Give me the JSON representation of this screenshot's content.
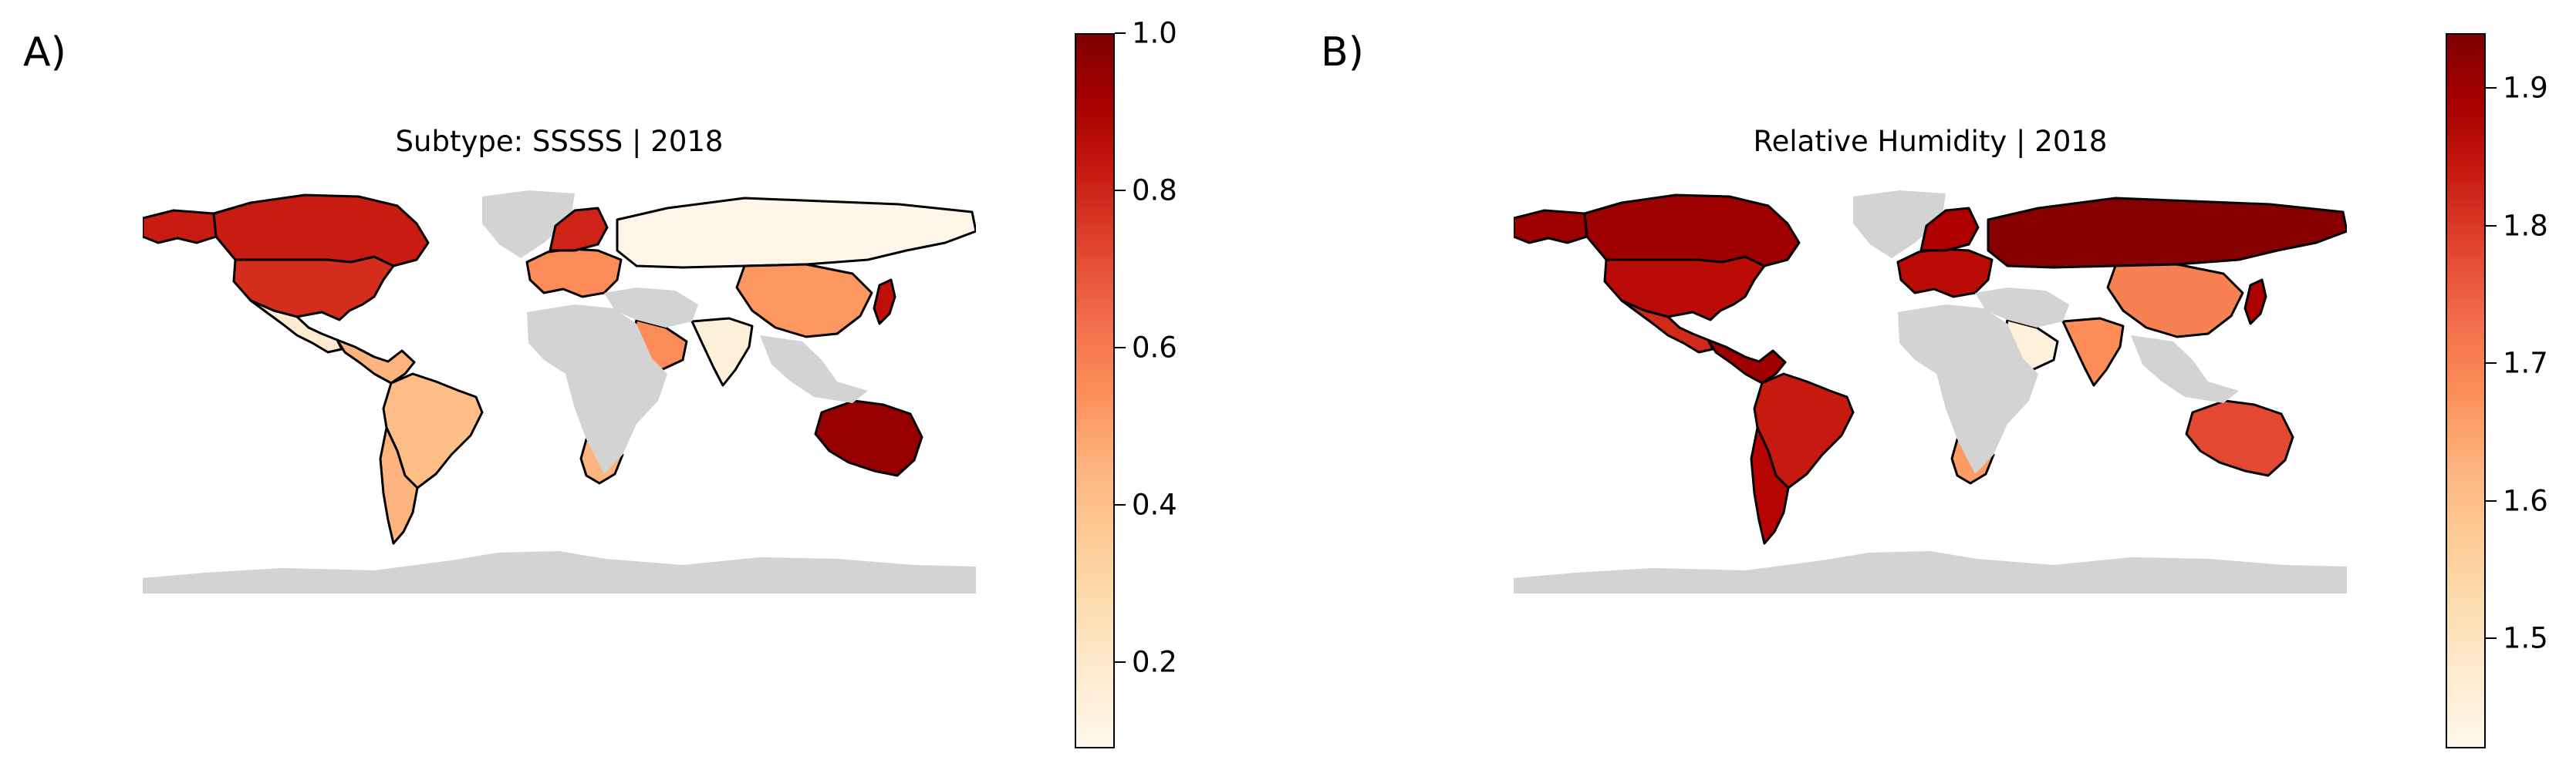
{
  "panels": [
    {
      "label": "A)",
      "title": "Subtype: SSSSS | 2018",
      "colormap": "OrRd",
      "colorbar": {
        "min": 0.09,
        "max": 1.0,
        "ticks": [
          0.2,
          0.4,
          0.6,
          0.8,
          1.0
        ],
        "tick_labels": [
          "0.2",
          "0.4",
          "0.6",
          "0.8",
          "1.0"
        ]
      },
      "regions": [
        {
          "name": "USA",
          "value": 0.78
        },
        {
          "name": "Canada",
          "value": 0.82
        },
        {
          "name": "Alaska",
          "value": 0.82
        },
        {
          "name": "Greenland",
          "value": null
        },
        {
          "name": "Mexico",
          "value": 0.18
        },
        {
          "name": "Central America",
          "value": 0.45
        },
        {
          "name": "South America",
          "value": 0.42
        },
        {
          "name": "Argentina/Chile",
          "value": 0.45
        },
        {
          "name": "Western Europe",
          "value": 0.55
        },
        {
          "name": "Scandinavia",
          "value": 0.8
        },
        {
          "name": "Russia",
          "value": 0.1
        },
        {
          "name": "China",
          "value": 0.52
        },
        {
          "name": "India",
          "value": 0.15
        },
        {
          "name": "Japan",
          "value": 0.85
        },
        {
          "name": "Arabian Peninsula",
          "value": 0.55
        },
        {
          "name": "South Africa",
          "value": 0.45
        },
        {
          "name": "Australia",
          "value": 0.95
        },
        {
          "name": "Africa",
          "value": null
        },
        {
          "name": "Middle East",
          "value": null
        },
        {
          "name": "Southeast Asia",
          "value": null
        },
        {
          "name": "Antarctica",
          "value": null
        }
      ]
    },
    {
      "label": "B)",
      "title": "Relative Humidity | 2018",
      "colormap": "OrRd",
      "colorbar": {
        "min": 1.42,
        "max": 1.94,
        "ticks": [
          1.5,
          1.6,
          1.7,
          1.8,
          1.9
        ],
        "tick_labels": [
          "1.5",
          "1.6",
          "1.7",
          "1.8",
          "1.9"
        ]
      },
      "regions": [
        {
          "name": "USA",
          "value": 1.86
        },
        {
          "name": "Canada",
          "value": 1.9
        },
        {
          "name": "Alaska",
          "value": 1.9
        },
        {
          "name": "Greenland",
          "value": null
        },
        {
          "name": "Mexico",
          "value": 1.82
        },
        {
          "name": "Central America",
          "value": 1.9
        },
        {
          "name": "South America",
          "value": 1.84
        },
        {
          "name": "Argentina/Chile",
          "value": 1.87
        },
        {
          "name": "Western Europe",
          "value": 1.86
        },
        {
          "name": "Scandinavia",
          "value": 1.88
        },
        {
          "name": "Russia",
          "value": 1.93
        },
        {
          "name": "China",
          "value": 1.7
        },
        {
          "name": "India",
          "value": 1.68
        },
        {
          "name": "Japan",
          "value": 1.88
        },
        {
          "name": "Arabian Peninsula",
          "value": 1.45
        },
        {
          "name": "South Africa",
          "value": 1.66
        },
        {
          "name": "Australia",
          "value": 1.78
        },
        {
          "name": "Africa",
          "value": null
        },
        {
          "name": "Middle East",
          "value": null
        },
        {
          "name": "Southeast Asia",
          "value": null
        },
        {
          "name": "Antarctica",
          "value": null
        }
      ]
    }
  ],
  "colors": {
    "no_data": "#d3d3d3",
    "border": "#000000"
  }
}
